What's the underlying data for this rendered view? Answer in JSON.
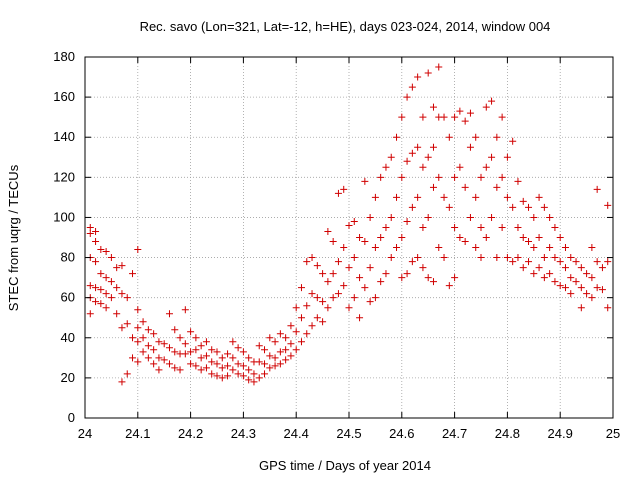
{
  "chart_data": {
    "type": "scatter",
    "title": "Rec. savo (Lon=321, Lat=-12, h=HE), days 023-024, 2014, window 004",
    "xlabel": "GPS time / Days of year 2014",
    "ylabel": "STEC from uqrg / TECUs",
    "xlim": [
      24,
      25
    ],
    "ylim": [
      0,
      180
    ],
    "xticks": [
      "24",
      "24.1",
      "24.2",
      "24.3",
      "24.4",
      "24.5",
      "24.6",
      "24.7",
      "24.8",
      "24.9",
      "25"
    ],
    "yticks": [
      "0",
      "20",
      "40",
      "60",
      "80",
      "100",
      "120",
      "140",
      "160",
      "180"
    ],
    "grid": true,
    "marker": "plus",
    "color": "#d00000",
    "series": [
      {
        "points": [
          [
            24.01,
            95
          ],
          [
            24.01,
            92
          ],
          [
            24.01,
            80
          ],
          [
            24.01,
            66
          ],
          [
            24.01,
            60
          ],
          [
            24.01,
            52
          ],
          [
            24.02,
            93
          ],
          [
            24.02,
            88
          ],
          [
            24.02,
            78
          ],
          [
            24.02,
            65
          ],
          [
            24.02,
            58
          ],
          [
            24.03,
            84
          ],
          [
            24.03,
            72
          ],
          [
            24.03,
            64
          ],
          [
            24.03,
            57
          ],
          [
            24.04,
            83
          ],
          [
            24.04,
            70
          ],
          [
            24.04,
            62
          ],
          [
            24.04,
            55
          ],
          [
            24.05,
            80
          ],
          [
            24.05,
            68
          ],
          [
            24.05,
            60
          ],
          [
            24.06,
            75
          ],
          [
            24.06,
            65
          ],
          [
            24.06,
            52
          ],
          [
            24.07,
            76
          ],
          [
            24.07,
            62
          ],
          [
            24.07,
            45
          ],
          [
            24.07,
            18
          ],
          [
            24.08,
            60
          ],
          [
            24.08,
            47
          ],
          [
            24.08,
            22
          ],
          [
            24.09,
            72
          ],
          [
            24.09,
            40
          ],
          [
            24.09,
            30
          ],
          [
            24.1,
            84
          ],
          [
            24.1,
            54
          ],
          [
            24.1,
            45
          ],
          [
            24.1,
            38
          ],
          [
            24.1,
            28
          ],
          [
            24.11,
            48
          ],
          [
            24.11,
            40
          ],
          [
            24.11,
            33
          ],
          [
            24.12,
            44
          ],
          [
            24.12,
            36
          ],
          [
            24.12,
            30
          ],
          [
            24.13,
            42
          ],
          [
            24.13,
            34
          ],
          [
            24.13,
            27
          ],
          [
            24.14,
            38
          ],
          [
            24.14,
            30
          ],
          [
            24.14,
            24
          ],
          [
            24.15,
            37
          ],
          [
            24.15,
            29
          ],
          [
            24.16,
            52
          ],
          [
            24.16,
            35
          ],
          [
            24.16,
            27
          ],
          [
            24.17,
            44
          ],
          [
            24.17,
            33
          ],
          [
            24.17,
            25
          ],
          [
            24.18,
            40
          ],
          [
            24.18,
            32
          ],
          [
            24.18,
            24
          ],
          [
            24.19,
            54
          ],
          [
            24.19,
            37
          ],
          [
            24.19,
            32
          ],
          [
            24.2,
            43
          ],
          [
            24.2,
            33
          ],
          [
            24.2,
            27
          ],
          [
            24.21,
            40
          ],
          [
            24.21,
            34
          ],
          [
            24.21,
            26
          ],
          [
            24.22,
            36
          ],
          [
            24.22,
            30
          ],
          [
            24.22,
            24
          ],
          [
            24.23,
            38
          ],
          [
            24.23,
            31
          ],
          [
            24.23,
            25
          ],
          [
            24.24,
            34
          ],
          [
            24.24,
            28
          ],
          [
            24.24,
            22
          ],
          [
            24.25,
            33
          ],
          [
            24.25,
            27
          ],
          [
            24.25,
            21
          ],
          [
            24.26,
            30
          ],
          [
            24.26,
            25
          ],
          [
            24.26,
            20
          ],
          [
            24.27,
            32
          ],
          [
            24.27,
            26
          ],
          [
            24.27,
            21
          ],
          [
            24.28,
            38
          ],
          [
            24.28,
            30
          ],
          [
            24.28,
            24
          ],
          [
            24.29,
            35
          ],
          [
            24.29,
            27
          ],
          [
            24.29,
            22
          ],
          [
            24.3,
            33
          ],
          [
            24.3,
            26
          ],
          [
            24.3,
            21
          ],
          [
            24.31,
            30
          ],
          [
            24.31,
            24
          ],
          [
            24.31,
            19
          ],
          [
            24.32,
            28
          ],
          [
            24.32,
            22
          ],
          [
            24.32,
            18
          ],
          [
            24.33,
            36
          ],
          [
            24.33,
            28
          ],
          [
            24.33,
            20
          ],
          [
            24.34,
            34
          ],
          [
            24.34,
            27
          ],
          [
            24.34,
            22
          ],
          [
            24.35,
            40
          ],
          [
            24.35,
            31
          ],
          [
            24.35,
            25
          ],
          [
            24.36,
            38
          ],
          [
            24.36,
            30
          ],
          [
            24.36,
            26
          ],
          [
            24.37,
            42
          ],
          [
            24.37,
            33
          ],
          [
            24.37,
            27
          ],
          [
            24.38,
            40
          ],
          [
            24.38,
            34
          ],
          [
            24.38,
            29
          ],
          [
            24.39,
            46
          ],
          [
            24.39,
            37
          ],
          [
            24.39,
            31
          ],
          [
            24.4,
            55
          ],
          [
            24.4,
            43
          ],
          [
            24.4,
            34
          ],
          [
            24.41,
            65
          ],
          [
            24.41,
            50
          ],
          [
            24.41,
            38
          ],
          [
            24.42,
            78
          ],
          [
            24.42,
            56
          ],
          [
            24.42,
            42
          ],
          [
            24.43,
            80
          ],
          [
            24.43,
            62
          ],
          [
            24.43,
            46
          ],
          [
            24.44,
            76
          ],
          [
            24.44,
            60
          ],
          [
            24.44,
            50
          ],
          [
            24.45,
            72
          ],
          [
            24.45,
            58
          ],
          [
            24.45,
            48
          ],
          [
            24.46,
            93
          ],
          [
            24.46,
            68
          ],
          [
            24.46,
            55
          ],
          [
            24.47,
            88
          ],
          [
            24.47,
            72
          ],
          [
            24.47,
            60
          ],
          [
            24.48,
            112
          ],
          [
            24.48,
            78
          ],
          [
            24.48,
            62
          ],
          [
            24.49,
            114
          ],
          [
            24.49,
            85
          ],
          [
            24.49,
            66
          ],
          [
            24.5,
            96
          ],
          [
            24.5,
            75
          ],
          [
            24.5,
            55
          ],
          [
            24.51,
            98
          ],
          [
            24.51,
            80
          ],
          [
            24.51,
            60
          ],
          [
            24.52,
            90
          ],
          [
            24.52,
            70
          ],
          [
            24.52,
            50
          ],
          [
            24.53,
            118
          ],
          [
            24.53,
            88
          ],
          [
            24.53,
            65
          ],
          [
            24.54,
            100
          ],
          [
            24.54,
            75
          ],
          [
            24.54,
            58
          ],
          [
            24.55,
            110
          ],
          [
            24.55,
            85
          ],
          [
            24.55,
            60
          ],
          [
            24.56,
            120
          ],
          [
            24.56,
            90
          ],
          [
            24.56,
            68
          ],
          [
            24.57,
            125
          ],
          [
            24.57,
            95
          ],
          [
            24.57,
            72
          ],
          [
            24.58,
            130
          ],
          [
            24.58,
            100
          ],
          [
            24.58,
            80
          ],
          [
            24.59,
            140
          ],
          [
            24.59,
            110
          ],
          [
            24.59,
            85
          ],
          [
            24.6,
            150
          ],
          [
            24.6,
            120
          ],
          [
            24.6,
            90
          ],
          [
            24.6,
            70
          ],
          [
            24.61,
            160
          ],
          [
            24.61,
            128
          ],
          [
            24.61,
            98
          ],
          [
            24.61,
            72
          ],
          [
            24.62,
            165
          ],
          [
            24.62,
            132
          ],
          [
            24.62,
            105
          ],
          [
            24.62,
            78
          ],
          [
            24.63,
            170
          ],
          [
            24.63,
            135
          ],
          [
            24.63,
            110
          ],
          [
            24.63,
            80
          ],
          [
            24.64,
            150
          ],
          [
            24.64,
            125
          ],
          [
            24.64,
            95
          ],
          [
            24.64,
            75
          ],
          [
            24.65,
            172
          ],
          [
            24.65,
            130
          ],
          [
            24.65,
            100
          ],
          [
            24.65,
            70
          ],
          [
            24.66,
            155
          ],
          [
            24.66,
            135
          ],
          [
            24.66,
            115
          ],
          [
            24.66,
            68
          ],
          [
            24.67,
            175
          ],
          [
            24.67,
            150
          ],
          [
            24.67,
            120
          ],
          [
            24.67,
            85
          ],
          [
            24.68,
            150
          ],
          [
            24.68,
            110
          ],
          [
            24.68,
            80
          ],
          [
            24.69,
            140
          ],
          [
            24.69,
            105
          ],
          [
            24.69,
            66
          ],
          [
            24.7,
            150
          ],
          [
            24.7,
            120
          ],
          [
            24.7,
            95
          ],
          [
            24.7,
            70
          ],
          [
            24.71,
            153
          ],
          [
            24.71,
            125
          ],
          [
            24.71,
            90
          ],
          [
            24.72,
            148
          ],
          [
            24.72,
            115
          ],
          [
            24.72,
            88
          ],
          [
            24.73,
            152
          ],
          [
            24.73,
            135
          ],
          [
            24.73,
            100
          ],
          [
            24.74,
            140
          ],
          [
            24.74,
            110
          ],
          [
            24.74,
            85
          ],
          [
            24.75,
            120
          ],
          [
            24.75,
            95
          ],
          [
            24.75,
            80
          ],
          [
            24.76,
            155
          ],
          [
            24.76,
            125
          ],
          [
            24.76,
            90
          ],
          [
            24.77,
            158
          ],
          [
            24.77,
            130
          ],
          [
            24.77,
            100
          ],
          [
            24.78,
            140
          ],
          [
            24.78,
            115
          ],
          [
            24.78,
            80
          ],
          [
            24.79,
            150
          ],
          [
            24.79,
            120
          ],
          [
            24.79,
            95
          ],
          [
            24.8,
            130
          ],
          [
            24.8,
            110
          ],
          [
            24.8,
            80
          ],
          [
            24.81,
            138
          ],
          [
            24.81,
            105
          ],
          [
            24.81,
            78
          ],
          [
            24.82,
            118
          ],
          [
            24.82,
            95
          ],
          [
            24.82,
            80
          ],
          [
            24.83,
            108
          ],
          [
            24.83,
            90
          ],
          [
            24.83,
            75
          ],
          [
            24.84,
            105
          ],
          [
            24.84,
            88
          ],
          [
            24.84,
            78
          ],
          [
            24.85,
            100
          ],
          [
            24.85,
            85
          ],
          [
            24.85,
            72
          ],
          [
            24.86,
            110
          ],
          [
            24.86,
            90
          ],
          [
            24.86,
            75
          ],
          [
            24.87,
            105
          ],
          [
            24.87,
            80
          ],
          [
            24.87,
            70
          ],
          [
            24.88,
            100
          ],
          [
            24.88,
            85
          ],
          [
            24.88,
            72
          ],
          [
            24.89,
            95
          ],
          [
            24.89,
            80
          ],
          [
            24.89,
            68
          ],
          [
            24.9,
            90
          ],
          [
            24.9,
            78
          ],
          [
            24.9,
            66
          ],
          [
            24.91,
            85
          ],
          [
            24.91,
            75
          ],
          [
            24.91,
            65
          ],
          [
            24.92,
            80
          ],
          [
            24.92,
            70
          ],
          [
            24.92,
            62
          ],
          [
            24.93,
            78
          ],
          [
            24.93,
            68
          ],
          [
            24.94,
            75
          ],
          [
            24.94,
            65
          ],
          [
            24.94,
            55
          ],
          [
            24.95,
            72
          ],
          [
            24.95,
            62
          ],
          [
            24.96,
            85
          ],
          [
            24.96,
            70
          ],
          [
            24.96,
            60
          ],
          [
            24.97,
            114
          ],
          [
            24.97,
            78
          ],
          [
            24.97,
            65
          ],
          [
            24.98,
            75
          ],
          [
            24.98,
            64
          ],
          [
            24.99,
            106
          ],
          [
            24.99,
            78
          ],
          [
            24.99,
            55
          ]
        ]
      }
    ]
  }
}
